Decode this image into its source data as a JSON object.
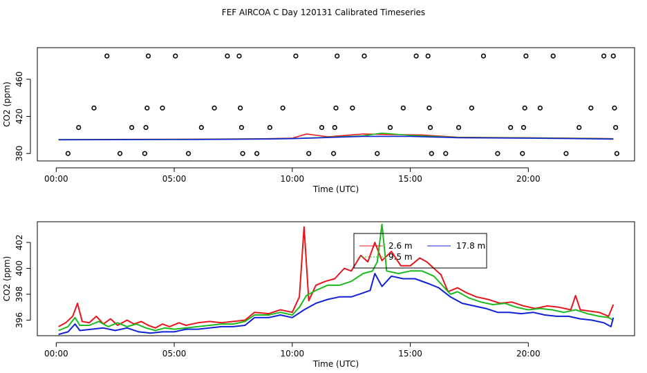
{
  "figure_title": "FEF AIRCOA C  Day 120131  Calibrated Timeseries",
  "colors": {
    "red": "#e8141c",
    "green": "#1aba1a",
    "blue": "#1020d8",
    "axis": "#000000"
  },
  "chart_data": [
    {
      "type": "scatter",
      "title": "",
      "xlabel": "Time (UTC)",
      "ylabel": "CO2 (ppm)",
      "xlim": [
        -0.8,
        24.5
      ],
      "ylim": [
        372,
        494
      ],
      "x_ticks": [
        0,
        5,
        10,
        15,
        20
      ],
      "x_tick_labels": [
        "00:00",
        "05:00",
        "10:00",
        "15:00",
        "20:00"
      ],
      "y_ticks": [
        380,
        420,
        460
      ],
      "y_tick_labels": [
        "380",
        "420",
        "460"
      ],
      "legend": "none",
      "calibration_points": [
        [
          0.5,
          380
        ],
        [
          0.95,
          408
        ],
        [
          1.6,
          429
        ],
        [
          2.15,
          485
        ],
        [
          2.7,
          380
        ],
        [
          3.2,
          408
        ],
        [
          3.75,
          380
        ],
        [
          3.8,
          408
        ],
        [
          3.85,
          429
        ],
        [
          3.9,
          485
        ],
        [
          4.5,
          429
        ],
        [
          5.05,
          485
        ],
        [
          5.6,
          380
        ],
        [
          6.15,
          408
        ],
        [
          6.7,
          429
        ],
        [
          7.25,
          485
        ],
        [
          7.75,
          485
        ],
        [
          7.8,
          429
        ],
        [
          7.85,
          408
        ],
        [
          7.9,
          380
        ],
        [
          8.5,
          380
        ],
        [
          9.05,
          408
        ],
        [
          9.6,
          429
        ],
        [
          10.15,
          485
        ],
        [
          10.7,
          380
        ],
        [
          11.25,
          408
        ],
        [
          11.75,
          380
        ],
        [
          11.8,
          408
        ],
        [
          11.85,
          429
        ],
        [
          11.9,
          485
        ],
        [
          12.55,
          429
        ],
        [
          13.05,
          485
        ],
        [
          13.6,
          380
        ],
        [
          14.15,
          408
        ],
        [
          14.7,
          429
        ],
        [
          15.25,
          485
        ],
        [
          15.75,
          485
        ],
        [
          15.8,
          429
        ],
        [
          15.85,
          408
        ],
        [
          15.9,
          380
        ],
        [
          16.5,
          380
        ],
        [
          17.05,
          408
        ],
        [
          17.6,
          429
        ],
        [
          18.1,
          485
        ],
        [
          18.7,
          380
        ],
        [
          19.25,
          408
        ],
        [
          19.75,
          380
        ],
        [
          19.8,
          408
        ],
        [
          19.85,
          429
        ],
        [
          19.9,
          485
        ],
        [
          20.5,
          429
        ],
        [
          21.05,
          485
        ],
        [
          21.6,
          380
        ],
        [
          22.15,
          408
        ],
        [
          22.65,
          429
        ],
        [
          23.2,
          485
        ],
        [
          23.6,
          485
        ],
        [
          23.65,
          429
        ],
        [
          23.7,
          408
        ],
        [
          23.75,
          380
        ]
      ],
      "series": [
        {
          "name": "2.6 m",
          "color": "#e8141c",
          "points": [
            [
              0.1,
              395
            ],
            [
              3,
              395.3
            ],
            [
              6,
              395.5
            ],
            [
              9,
              396
            ],
            [
              10,
              396.5
            ],
            [
              10.6,
              401
            ],
            [
              11.5,
              398
            ],
            [
              13,
              401
            ],
            [
              14,
              400.5
            ],
            [
              15.5,
              400
            ],
            [
              17,
              397.5
            ],
            [
              20,
              397
            ],
            [
              22,
              396.5
            ],
            [
              23.6,
              396
            ]
          ]
        },
        {
          "name": "9.5 m",
          "color": "#1aba1a",
          "points": [
            [
              0.1,
              395
            ],
            [
              3,
              395.1
            ],
            [
              6,
              395.3
            ],
            [
              9,
              395.8
            ],
            [
              10,
              396.2
            ],
            [
              11,
              397
            ],
            [
              13,
              399
            ],
            [
              13.8,
              402
            ],
            [
              15,
              399.5
            ],
            [
              17,
              397.3
            ],
            [
              20,
              396.8
            ],
            [
              22,
              396.3
            ],
            [
              23.6,
              395.8
            ]
          ]
        },
        {
          "name": "17.8 m",
          "color": "#1020d8",
          "points": [
            [
              0.1,
              394.8
            ],
            [
              3,
              394.9
            ],
            [
              6,
              395.1
            ],
            [
              9,
              395.6
            ],
            [
              10,
              396
            ],
            [
              11,
              396.8
            ],
            [
              13,
              398.5
            ],
            [
              15,
              398.5
            ],
            [
              17,
              397
            ],
            [
              20,
              396.5
            ],
            [
              22,
              396
            ],
            [
              23.6,
              395.5
            ]
          ]
        }
      ]
    },
    {
      "type": "line",
      "title": "",
      "xlabel": "Time (UTC)",
      "ylabel": "CO2 (ppm)",
      "xlim": [
        -0.8,
        24.5
      ],
      "ylim": [
        394.8,
        403.6
      ],
      "x_ticks": [
        0,
        5,
        10,
        15,
        20
      ],
      "x_tick_labels": [
        "00:00",
        "05:00",
        "10:00",
        "15:00",
        "20:00"
      ],
      "y_ticks": [
        396,
        398,
        400,
        402
      ],
      "y_tick_labels": [
        "396",
        "398",
        "400",
        "402"
      ],
      "legend": "top-center",
      "legend_entries": [
        "2.6 m",
        "17.8 m",
        "9.5 m"
      ],
      "series": [
        {
          "name": "2.6 m",
          "color": "#e8141c",
          "points": [
            [
              0.1,
              395.5
            ],
            [
              0.4,
              395.8
            ],
            [
              0.7,
              396.3
            ],
            [
              0.9,
              397.3
            ],
            [
              1.1,
              395.9
            ],
            [
              1.4,
              395.8
            ],
            [
              1.7,
              396.3
            ],
            [
              2.0,
              395.7
            ],
            [
              2.3,
              396.1
            ],
            [
              2.6,
              395.6
            ],
            [
              3.0,
              396
            ],
            [
              3.3,
              395.7
            ],
            [
              3.6,
              395.9
            ],
            [
              3.9,
              395.6
            ],
            [
              4.2,
              395.4
            ],
            [
              4.5,
              395.7
            ],
            [
              4.8,
              395.5
            ],
            [
              5.2,
              395.8
            ],
            [
              5.5,
              395.6
            ],
            [
              6.0,
              395.8
            ],
            [
              6.5,
              395.9
            ],
            [
              7.0,
              395.8
            ],
            [
              7.5,
              395.9
            ],
            [
              8.0,
              396
            ],
            [
              8.4,
              396.6
            ],
            [
              9.0,
              396.5
            ],
            [
              9.5,
              396.8
            ],
            [
              10.0,
              396.6
            ],
            [
              10.3,
              397.8
            ],
            [
              10.5,
              403.2
            ],
            [
              10.7,
              397.5
            ],
            [
              11.0,
              398.7
            ],
            [
              11.4,
              399
            ],
            [
              11.8,
              399.2
            ],
            [
              12.2,
              400
            ],
            [
              12.5,
              399.8
            ],
            [
              12.9,
              401
            ],
            [
              13.2,
              400.5
            ],
            [
              13.5,
              402
            ],
            [
              13.8,
              400.6
            ],
            [
              14.2,
              401.3
            ],
            [
              14.6,
              400.2
            ],
            [
              15.0,
              400.2
            ],
            [
              15.4,
              400.8
            ],
            [
              15.7,
              400.5
            ],
            [
              16.0,
              400
            ],
            [
              16.3,
              399.5
            ],
            [
              16.6,
              398.2
            ],
            [
              17.0,
              398.5
            ],
            [
              17.4,
              398.1
            ],
            [
              17.8,
              397.8
            ],
            [
              18.3,
              397.6
            ],
            [
              18.8,
              397.3
            ],
            [
              19.3,
              397.4
            ],
            [
              19.8,
              397.1
            ],
            [
              20.3,
              396.9
            ],
            [
              20.8,
              397.1
            ],
            [
              21.3,
              397
            ],
            [
              21.8,
              396.8
            ],
            [
              22.0,
              397.9
            ],
            [
              22.2,
              396.8
            ],
            [
              22.6,
              396.7
            ],
            [
              23.0,
              396.6
            ],
            [
              23.4,
              396.3
            ],
            [
              23.6,
              397.2
            ]
          ]
        },
        {
          "name": "9.5 m",
          "color": "#1aba1a",
          "points": [
            [
              0.1,
              395.2
            ],
            [
              0.5,
              395.5
            ],
            [
              0.8,
              396.2
            ],
            [
              1.0,
              395.6
            ],
            [
              1.4,
              395.6
            ],
            [
              1.8,
              395.9
            ],
            [
              2.2,
              395.5
            ],
            [
              2.6,
              395.8
            ],
            [
              3.0,
              395.5
            ],
            [
              3.4,
              395.7
            ],
            [
              3.8,
              395.4
            ],
            [
              4.2,
              395.2
            ],
            [
              4.6,
              395.4
            ],
            [
              5.0,
              395.3
            ],
            [
              5.5,
              395.4
            ],
            [
              6.0,
              395.5
            ],
            [
              6.5,
              395.6
            ],
            [
              7.0,
              395.7
            ],
            [
              7.5,
              395.7
            ],
            [
              8.0,
              395.9
            ],
            [
              8.4,
              396.4
            ],
            [
              9.0,
              396.4
            ],
            [
              9.5,
              396.6
            ],
            [
              10.0,
              396.4
            ],
            [
              10.3,
              397
            ],
            [
              10.6,
              397.9
            ],
            [
              11.0,
              398.3
            ],
            [
              11.5,
              398.7
            ],
            [
              12.0,
              398.7
            ],
            [
              12.5,
              399
            ],
            [
              13.0,
              399.6
            ],
            [
              13.4,
              399.8
            ],
            [
              13.6,
              400.5
            ],
            [
              13.8,
              403.4
            ],
            [
              14.0,
              399.8
            ],
            [
              14.5,
              399.6
            ],
            [
              15.0,
              399.8
            ],
            [
              15.5,
              399.8
            ],
            [
              16.0,
              399.4
            ],
            [
              16.3,
              398.8
            ],
            [
              16.7,
              398
            ],
            [
              17.0,
              398.2
            ],
            [
              17.5,
              397.7
            ],
            [
              18.0,
              397.4
            ],
            [
              18.5,
              397.2
            ],
            [
              19.0,
              397.3
            ],
            [
              19.5,
              397
            ],
            [
              20.0,
              396.8
            ],
            [
              20.5,
              396.9
            ],
            [
              21.0,
              396.8
            ],
            [
              21.5,
              396.6
            ],
            [
              22.0,
              396.8
            ],
            [
              22.5,
              396.5
            ],
            [
              23.0,
              396.3
            ],
            [
              23.4,
              396.2
            ],
            [
              23.6,
              396
            ]
          ]
        },
        {
          "name": "17.8 m",
          "color": "#1020d8",
          "points": [
            [
              0.1,
              394.9
            ],
            [
              0.5,
              395.1
            ],
            [
              0.8,
              395.7
            ],
            [
              1.0,
              395.2
            ],
            [
              1.5,
              395.3
            ],
            [
              2.0,
              395.4
            ],
            [
              2.5,
              395.2
            ],
            [
              3.0,
              395.4
            ],
            [
              3.5,
              395.1
            ],
            [
              4.0,
              395
            ],
            [
              4.5,
              395.1
            ],
            [
              5.0,
              395.1
            ],
            [
              5.5,
              395.3
            ],
            [
              6.0,
              395.3
            ],
            [
              6.5,
              395.4
            ],
            [
              7.0,
              395.5
            ],
            [
              7.5,
              395.5
            ],
            [
              8.0,
              395.6
            ],
            [
              8.4,
              396.2
            ],
            [
              9.0,
              396.2
            ],
            [
              9.5,
              396.4
            ],
            [
              10.0,
              396.2
            ],
            [
              10.5,
              396.8
            ],
            [
              11.0,
              397.3
            ],
            [
              11.5,
              397.6
            ],
            [
              12.0,
              397.8
            ],
            [
              12.5,
              397.8
            ],
            [
              13.0,
              398.1
            ],
            [
              13.3,
              398.3
            ],
            [
              13.5,
              399.6
            ],
            [
              13.8,
              398.6
            ],
            [
              14.2,
              399.4
            ],
            [
              14.7,
              399.2
            ],
            [
              15.2,
              399.2
            ],
            [
              15.8,
              398.8
            ],
            [
              16.2,
              398.5
            ],
            [
              16.7,
              397.8
            ],
            [
              17.2,
              397.3
            ],
            [
              17.7,
              397.1
            ],
            [
              18.2,
              396.9
            ],
            [
              18.7,
              396.6
            ],
            [
              19.2,
              396.6
            ],
            [
              19.7,
              396.5
            ],
            [
              20.2,
              396.6
            ],
            [
              20.7,
              396.4
            ],
            [
              21.2,
              396.3
            ],
            [
              21.7,
              396.3
            ],
            [
              22.2,
              396.1
            ],
            [
              22.7,
              396
            ],
            [
              23.2,
              395.8
            ],
            [
              23.5,
              395.5
            ],
            [
              23.6,
              396.2
            ]
          ]
        }
      ]
    }
  ]
}
